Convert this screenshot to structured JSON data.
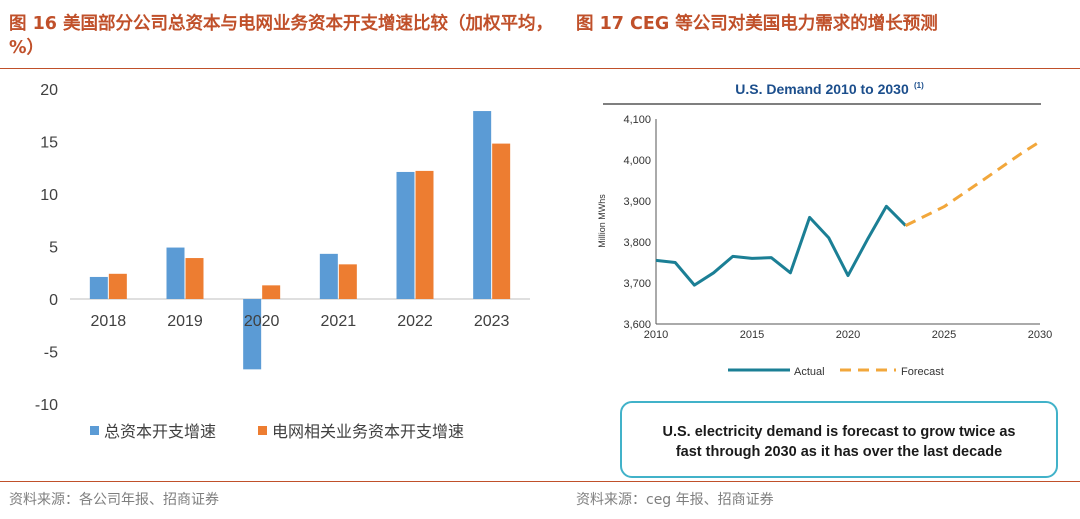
{
  "left_panel": {
    "title": "图 16 美国部分公司总资本与电网业务资本开支增速比较（加权平均，%）",
    "source": "资料来源：各公司年报、招商证券"
  },
  "right_panel": {
    "title": "图 17 CEG 等公司对美国电力需求的增长预测",
    "source": "资料来源：ceg 年报、招商证券",
    "callout": [
      "U.S. electricity demand is forecast to grow twice as",
      "fast through 2030 as it has over the last decade"
    ]
  },
  "colors": {
    "accent": "#c0502a",
    "series1": "#5b9bd5",
    "series2": "#ed7d31",
    "actual": "#1b7f95",
    "forecast": "#f2a73b",
    "chart_title": "#1b4e8c",
    "callout_border": "#41b2c9"
  },
  "chart_data": [
    {
      "type": "bar",
      "title": "",
      "categories": [
        "2018",
        "2019",
        "2020",
        "2021",
        "2022",
        "2023"
      ],
      "series": [
        {
          "name": "总资本开支增速",
          "values": [
            2.1,
            4.9,
            -6.7,
            4.3,
            12.1,
            17.9
          ]
        },
        {
          "name": "电网相关业务资本开支增速",
          "values": [
            2.4,
            3.9,
            1.3,
            3.3,
            12.2,
            14.8
          ]
        }
      ],
      "xlabel": "",
      "ylabel": "",
      "ylim": [
        -10,
        20
      ],
      "yticks": [
        -10,
        -5,
        0,
        5,
        10,
        15,
        20
      ],
      "grid": false,
      "legend": "bottom"
    },
    {
      "type": "line",
      "title": "U.S. Demand 2010 to 2030",
      "title_note": "(1)",
      "xlabel": "",
      "ylabel": "Million MWhs",
      "xlim": [
        2010,
        2030
      ],
      "ylim": [
        3600,
        4100
      ],
      "xticks": [
        2010,
        2015,
        2020,
        2025,
        2030
      ],
      "yticks": [
        3600,
        3700,
        3800,
        3900,
        4000,
        4100
      ],
      "ytick_labels": [
        "3,600",
        "3,700",
        "3,800",
        "3,900",
        "4,000",
        "4,100"
      ],
      "grid": false,
      "legend": "bottom",
      "series": [
        {
          "name": "Actual",
          "style": "solid",
          "x": [
            2010,
            2011,
            2012,
            2013,
            2014,
            2015,
            2016,
            2017,
            2018,
            2019,
            2020,
            2021,
            2022,
            2023
          ],
          "y": [
            3755,
            3750,
            3695,
            3725,
            3765,
            3760,
            3762,
            3725,
            3860,
            3810,
            3718,
            3805,
            3887,
            3840
          ]
        },
        {
          "name": "Forecast",
          "style": "dashed",
          "x": [
            2023,
            2025,
            2027,
            2029,
            2030
          ],
          "y": [
            3840,
            3886,
            3950,
            4015,
            4045
          ]
        }
      ]
    }
  ]
}
